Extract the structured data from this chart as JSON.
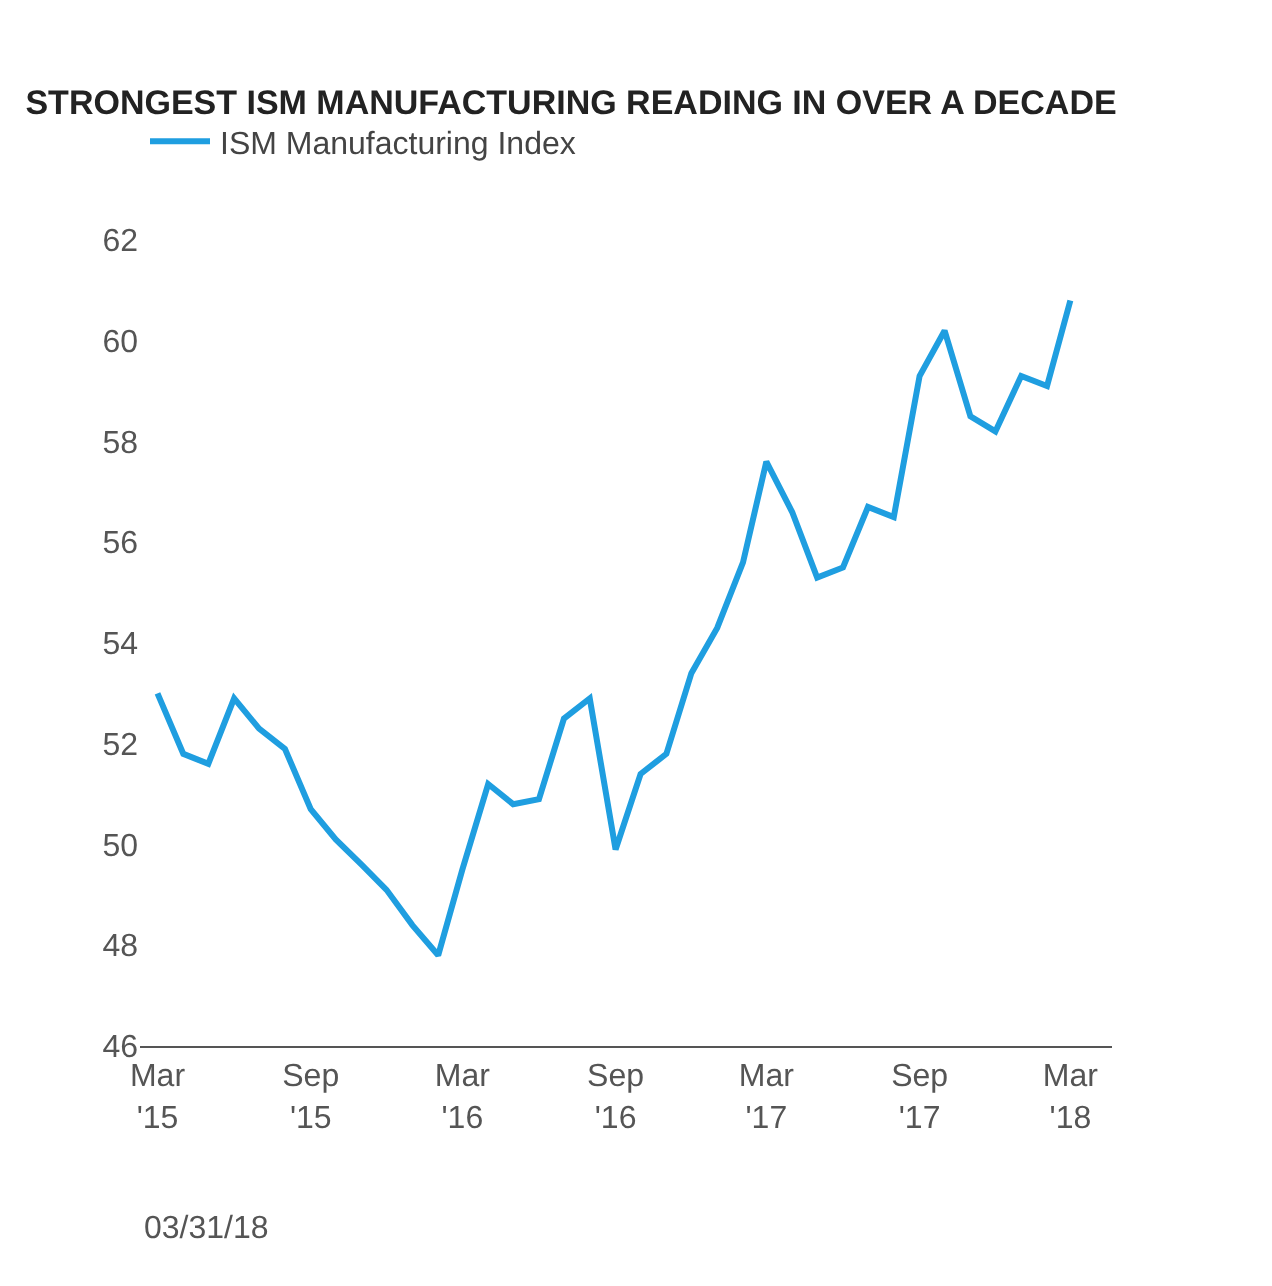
{
  "chart_data": {
    "type": "line",
    "title": "STRONGEST ISM MANUFACTURING READING IN OVER A DECADE",
    "x": [
      "2015-03",
      "2015-04",
      "2015-05",
      "2015-06",
      "2015-07",
      "2015-08",
      "2015-09",
      "2015-10",
      "2015-11",
      "2015-12",
      "2016-01",
      "2016-02",
      "2016-03",
      "2016-04",
      "2016-05",
      "2016-06",
      "2016-07",
      "2016-08",
      "2016-09",
      "2016-10",
      "2016-11",
      "2016-12",
      "2017-01",
      "2017-02",
      "2017-03",
      "2017-04",
      "2017-05",
      "2017-06",
      "2017-07",
      "2017-08",
      "2017-09",
      "2017-10",
      "2017-11",
      "2017-12",
      "2018-01",
      "2018-02",
      "2018-03"
    ],
    "series": [
      {
        "name": "ISM Manufacturing Index",
        "color": "#1f9ee0",
        "values": [
          53.0,
          51.8,
          51.6,
          52.9,
          52.3,
          51.9,
          50.7,
          50.1,
          49.6,
          49.1,
          48.4,
          47.8,
          49.5,
          51.2,
          50.8,
          50.9,
          52.5,
          52.9,
          49.9,
          51.4,
          51.8,
          53.4,
          54.3,
          55.6,
          57.6,
          56.6,
          55.3,
          55.5,
          56.7,
          56.5,
          59.3,
          60.2,
          58.5,
          58.2,
          59.3,
          59.1,
          60.8
        ]
      }
    ],
    "ylim": [
      46,
      62
    ],
    "yticks": [
      46,
      48,
      50,
      52,
      54,
      56,
      58,
      60,
      62
    ],
    "xlim": [
      "2015-02-08",
      "2018-04-20"
    ],
    "xticks": [
      {
        "value": "2015-03",
        "label": "Mar\n'15"
      },
      {
        "value": "2015-09",
        "label": "Sep\n'15"
      },
      {
        "value": "2016-03",
        "label": "Mar\n'16"
      },
      {
        "value": "2016-09",
        "label": "Sep\n'16"
      },
      {
        "value": "2017-03",
        "label": "Mar\n'17"
      },
      {
        "value": "2017-09",
        "label": "Sep\n'17"
      },
      {
        "value": "2018-03",
        "label": "Mar\n'18"
      }
    ],
    "legend": "top left",
    "line_style": "solid",
    "annotations": [
      "03/31/18"
    ]
  }
}
